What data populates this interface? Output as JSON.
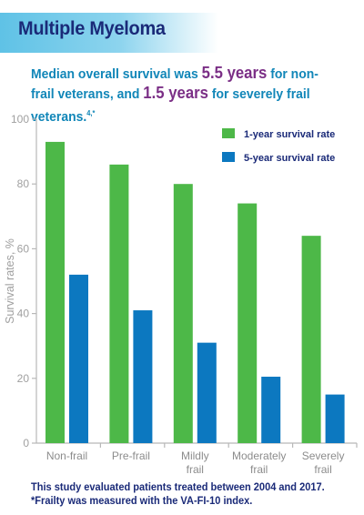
{
  "header": {
    "title": "Multiple Myeloma"
  },
  "headline": {
    "part1": "Median overall survival was ",
    "value1": "5.5 years",
    "part2": " for non-frail veterans, and ",
    "value2": "1.5 years",
    "part3": " for severely frail veterans.",
    "refs": "4,*"
  },
  "footer": {
    "line1": "This study evaluated patients treated between 2004 and 2017.",
    "line2": "*Frailty was measured with the VA-FI-10 index."
  },
  "chart_data": {
    "type": "bar",
    "categories": [
      [
        "Non-frail"
      ],
      [
        "Pre-frail"
      ],
      [
        "Mildly",
        "frail"
      ],
      [
        "Moderately",
        "frail"
      ],
      [
        "Severely",
        "frail"
      ]
    ],
    "series": [
      {
        "name": "1-year survival rate",
        "color": "#4db848",
        "values": [
          93,
          86,
          80,
          74,
          64
        ]
      },
      {
        "name": "5-year survival rate",
        "color": "#0c78c0",
        "values": [
          52,
          41,
          31,
          20.5,
          15
        ]
      }
    ],
    "ylabel": "Survival rates, %",
    "ylim": [
      0,
      100
    ],
    "yticks": [
      0,
      20,
      40,
      60,
      80,
      100
    ],
    "legend_position": "top-right",
    "grid": false
  }
}
